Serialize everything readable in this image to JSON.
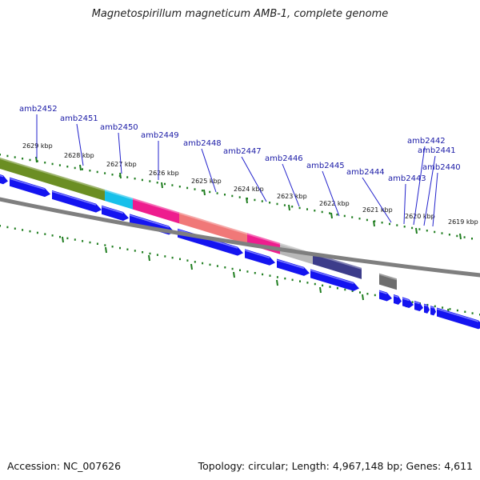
{
  "title": "Magnetospirillum magneticum AMB-1, complete genome",
  "footer": {
    "accession": "Accession: NC_007626",
    "stats": "Topology: circular; Length: 4,967,148 bp; Genes: 4,611"
  },
  "colors": {
    "background": "#ffffff",
    "backbone": "#7f7f7f",
    "tick": "#1e7d1e",
    "cds": "#1414f0",
    "label_text": "#1a1aa6",
    "leader_line": "#2222cc"
  },
  "kbp_labels": [
    "2629 kbp",
    "2628 kbp",
    "2627 kbp",
    "2626 kbp",
    "2625 kbp",
    "2624 kbp",
    "2623 kbp",
    "2622 kbp",
    "2621 kbp",
    "2620 kbp",
    "2619 kbp"
  ],
  "gene_labels": [
    "amb2452",
    "amb2451",
    "amb2450",
    "amb2449",
    "amb2448",
    "amb2447",
    "amb2446",
    "amb2445",
    "amb2444",
    "amb2443",
    "amb2442",
    "amb2441",
    "amb2440"
  ],
  "cog_segments": [
    {
      "color": "#6b8e23"
    },
    {
      "color": "#6b8e23"
    },
    {
      "color": "#6b8e23"
    },
    {
      "color": "#17c0ea"
    },
    {
      "color": "#ee1d8e"
    },
    {
      "color": "#f07878"
    },
    {
      "color": "#ee1d8e"
    },
    {
      "color": "#b8b8b8"
    },
    {
      "color": "#3c3c8a"
    },
    {
      "color": "#6e6e6e"
    }
  ]
}
